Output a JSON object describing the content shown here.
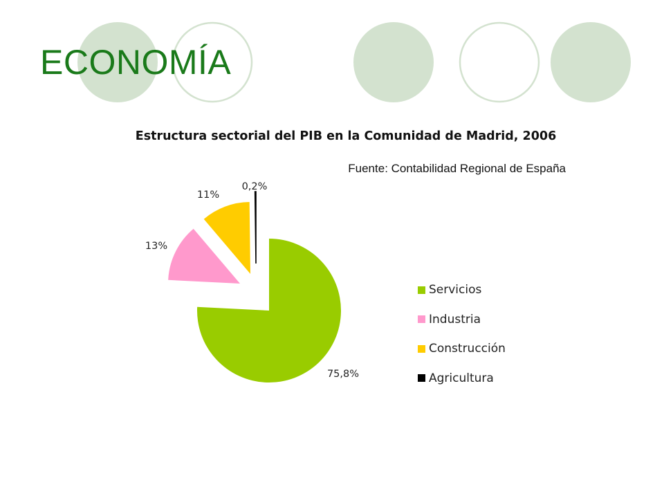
{
  "slide": {
    "title": "ECONOMÍA",
    "decor_colors": {
      "fill": "#d3e2cf",
      "ring": "#d3e2cf"
    }
  },
  "chart_data": {
    "type": "pie",
    "title": "Estructura sectorial del PIB en la Comunidad de Madrid, 2006",
    "source": "Fuente: Contabilidad Regional de España",
    "start_angle_deg": 0,
    "exploded": true,
    "slices": [
      {
        "name": "Servicios",
        "value": 75.8,
        "label": "75,8%",
        "color": "#99cc00"
      },
      {
        "name": "Industria",
        "value": 13,
        "label": "13%",
        "color": "#ff99cc"
      },
      {
        "name": "Construcción",
        "value": 11,
        "label": "11%",
        "color": "#ffcc00"
      },
      {
        "name": "Agricultura",
        "value": 0.2,
        "label": "0,2%",
        "color": "#000000"
      }
    ],
    "legend_position": "right"
  }
}
